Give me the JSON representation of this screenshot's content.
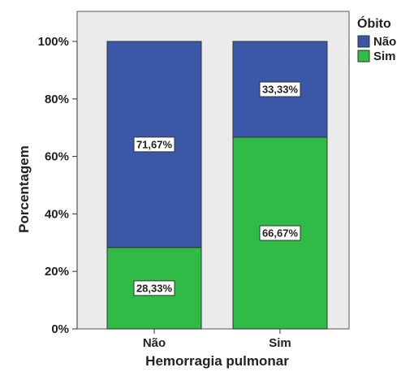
{
  "chart_data": {
    "type": "bar",
    "stacked": true,
    "categories": [
      "Não",
      "Sim"
    ],
    "series": [
      {
        "name": "Sim",
        "values": [
          28.33,
          66.67
        ],
        "labels": [
          "28,33%",
          "66,67%"
        ]
      },
      {
        "name": "Não",
        "values": [
          71.67,
          33.33
        ],
        "labels": [
          "71,67%",
          "33,33%"
        ]
      }
    ],
    "xlabel": "Hemorragia pulmonar",
    "ylabel": "Porcentagem",
    "ylim": [
      0,
      100
    ],
    "yticks": [
      "0%",
      "20%",
      "40%",
      "60%",
      "80%",
      "100%"
    ],
    "legend": {
      "title": "Óbito",
      "position": "top-right",
      "entries": [
        "Não",
        "Sim"
      ]
    },
    "grid": false
  },
  "colors": {
    "Não": "#3a57a8",
    "Sim": "#2fbb46",
    "plot_background": "#ebebeb"
  }
}
